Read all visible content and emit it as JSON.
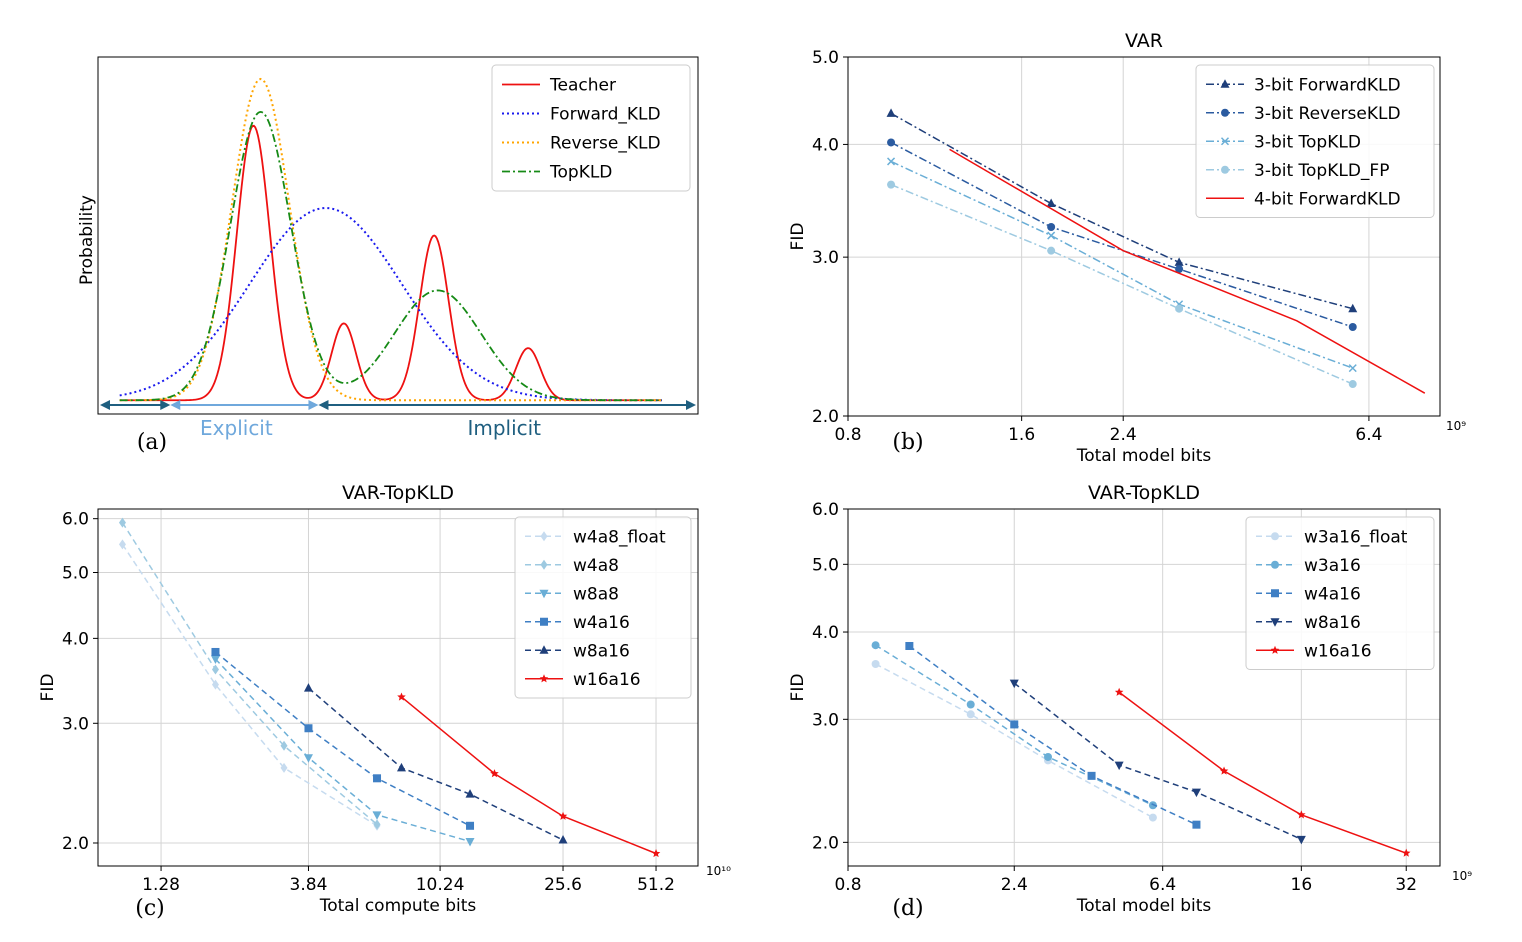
{
  "colors": {
    "teacher": "#ee1111",
    "forward": "#1a1aee",
    "reverse": "#ffa500",
    "topkld": "#168a16",
    "arrow_dark": "#1f5f80",
    "arrow_light": "#6fa8dc",
    "s1": "#c6dbef",
    "s2": "#9ecae1",
    "s3": "#6aaed6",
    "s4": "#3f7fc4",
    "s5": "#2b5ba0",
    "s6": "#1f3f7a",
    "red": "#ee1111"
  },
  "chart_data": [
    {
      "id": "a",
      "type": "line",
      "panel_label": "(a)",
      "title": "",
      "ylabel": "Probability",
      "xlabel": "",
      "xlim": [
        -0.3,
        8.0
      ],
      "ylim": [
        -0.05,
        1.25
      ],
      "legend_position": "top-right",
      "legend": [
        "Teacher",
        "Forward_KLD",
        "Reverse_KLD",
        "TopKLD"
      ],
      "regions": [
        {
          "label": "Explicit",
          "from": 0.7,
          "to": 2.75
        },
        {
          "label": "Implicit",
          "from": 2.75,
          "to": 7.9
        }
      ],
      "series": [
        {
          "name": "Teacher",
          "style": "solid",
          "color_key": "teacher",
          "x_range": [
            0,
            7.5
          ],
          "components": [
            {
              "amp": 1.0,
              "mu": 1.85,
              "sigma": 0.23
            },
            {
              "amp": 0.28,
              "mu": 3.1,
              "sigma": 0.17
            },
            {
              "amp": 0.6,
              "mu": 4.35,
              "sigma": 0.2
            },
            {
              "amp": 0.19,
              "mu": 5.65,
              "sigma": 0.17
            }
          ]
        },
        {
          "name": "Forward_KLD",
          "style": "dotted",
          "color_key": "forward",
          "x_range": [
            0,
            7.5
          ],
          "components": [
            {
              "amp": 0.7,
              "mu": 2.85,
              "sigma": 1.05
            }
          ]
        },
        {
          "name": "Reverse_KLD",
          "style": "dotted",
          "color_key": "reverse",
          "x_range": [
            0,
            7.5
          ],
          "components": [
            {
              "amp": 1.17,
              "mu": 1.95,
              "sigma": 0.4
            }
          ]
        },
        {
          "name": "TopKLD",
          "style": "dashdot",
          "color_key": "topkld",
          "x_range": [
            0,
            7.5
          ],
          "components": [
            {
              "amp": 1.05,
              "mu": 1.95,
              "sigma": 0.42
            },
            {
              "amp": 0.4,
              "mu": 4.4,
              "sigma": 0.6
            }
          ]
        }
      ]
    },
    {
      "id": "b",
      "type": "line",
      "panel_label": "(b)",
      "title": "VAR",
      "xlabel": "Total model bits",
      "ylabel": "FID",
      "xscale": "log",
      "yscale": "log",
      "x_unit": "10⁹",
      "xlim": [
        0.8,
        8.5
      ],
      "ylim": [
        2.0,
        5.0
      ],
      "xticks": [
        0.8,
        1.6,
        2.4,
        6.4
      ],
      "xtick_labels": [
        "0.8",
        "1.6",
        "2.4",
        "6.4"
      ],
      "yticks": [
        2.0,
        3.0,
        4.0,
        5.0
      ],
      "ytick_labels": [
        "2.0",
        "3.0",
        "4.0",
        "5.0"
      ],
      "grid": true,
      "legend_position": "top-right",
      "series": [
        {
          "name": "3-bit ForwardKLD",
          "color_key": "s6",
          "dash": "dashdot",
          "marker": "triangle",
          "x": [
            0.95,
            1.8,
            3.0,
            6.0
          ],
          "y": [
            4.33,
            3.44,
            2.96,
            2.63
          ]
        },
        {
          "name": "3-bit ReverseKLD",
          "color_key": "s5",
          "dash": "dashdot",
          "marker": "circle",
          "x": [
            0.95,
            1.8,
            3.0,
            6.0
          ],
          "y": [
            4.02,
            3.24,
            2.91,
            2.51
          ]
        },
        {
          "name": "3-bit TopKLD",
          "color_key": "s3",
          "dash": "dashdot",
          "marker": "x",
          "x": [
            0.95,
            1.8,
            3.0,
            6.0
          ],
          "y": [
            3.83,
            3.17,
            2.66,
            2.26
          ]
        },
        {
          "name": "3-bit TopKLD_FP",
          "color_key": "s2",
          "dash": "dashdot",
          "marker": "circle",
          "x": [
            0.95,
            1.8,
            3.0,
            6.0
          ],
          "y": [
            3.61,
            3.05,
            2.63,
            2.17
          ]
        },
        {
          "name": "4-bit ForwardKLD",
          "color_key": "red",
          "dash": "solid",
          "marker": "none",
          "x": [
            1.2,
            2.4,
            4.8,
            8.0
          ],
          "y": [
            3.95,
            3.05,
            2.55,
            2.12
          ]
        }
      ]
    },
    {
      "id": "c",
      "type": "line",
      "panel_label": "(c)",
      "title": "VAR-TopKLD",
      "xlabel": "Total compute bits",
      "ylabel": "FID",
      "xscale": "log",
      "yscale": "log",
      "x_unit": "10¹⁰",
      "xlim": [
        0.8,
        70
      ],
      "ylim": [
        1.85,
        6.2
      ],
      "xticks": [
        1.28,
        3.84,
        10.24,
        25.6,
        51.2
      ],
      "xtick_labels": [
        "1.28",
        "3.84",
        "10.24",
        "25.6",
        "51.2"
      ],
      "yticks": [
        2.0,
        3.0,
        4.0,
        5.0,
        6.0
      ],
      "ytick_labels": [
        "2.0",
        "3.0",
        "4.0",
        "5.0",
        "6.0"
      ],
      "grid": true,
      "legend_position": "top-right",
      "series": [
        {
          "name": "w4a8_float",
          "color_key": "s1",
          "dash": "dashed",
          "marker": "diamond",
          "x": [
            0.96,
            1.92,
            3.2,
            6.4
          ],
          "y": [
            5.5,
            3.42,
            2.58,
            2.12
          ]
        },
        {
          "name": "w4a8",
          "color_key": "s2",
          "dash": "dashed",
          "marker": "diamond",
          "x": [
            0.96,
            1.92,
            3.2,
            6.4
          ],
          "y": [
            5.92,
            3.6,
            2.78,
            2.13
          ]
        },
        {
          "name": "w8a8",
          "color_key": "s3",
          "dash": "dashed",
          "marker": "tri_down",
          "x": [
            1.92,
            3.84,
            6.4,
            12.8
          ],
          "y": [
            3.73,
            2.67,
            2.2,
            2.01
          ]
        },
        {
          "name": "w4a16",
          "color_key": "s4",
          "dash": "dashed",
          "marker": "square",
          "x": [
            1.92,
            3.84,
            6.4,
            12.8
          ],
          "y": [
            3.82,
            2.95,
            2.49,
            2.12
          ]
        },
        {
          "name": "w8a16",
          "color_key": "s6",
          "dash": "dashed",
          "marker": "triangle",
          "x": [
            3.84,
            7.68,
            12.8,
            25.6
          ],
          "y": [
            3.38,
            2.58,
            2.36,
            2.02
          ]
        },
        {
          "name": "w16a16",
          "color_key": "red",
          "dash": "solid",
          "marker": "star",
          "x": [
            7.68,
            15.36,
            25.6,
            51.2
          ],
          "y": [
            3.28,
            2.53,
            2.19,
            1.93
          ]
        }
      ]
    },
    {
      "id": "d",
      "type": "line",
      "panel_label": "(d)",
      "title": "VAR-TopKLD",
      "xlabel": "Total model bits",
      "ylabel": "FID",
      "xscale": "log",
      "yscale": "log",
      "x_unit": "10⁹",
      "xlim": [
        0.8,
        40
      ],
      "ylim": [
        1.85,
        6.0
      ],
      "xticks": [
        0.8,
        2.4,
        6.4,
        16,
        32
      ],
      "xtick_labels": [
        "0.8",
        "2.4",
        "6.4",
        "16",
        "32"
      ],
      "yticks": [
        2.0,
        3.0,
        4.0,
        5.0,
        6.0
      ],
      "ytick_labels": [
        "2.0",
        "3.0",
        "4.0",
        "5.0",
        "6.0"
      ],
      "grid": true,
      "legend_position": "top-right",
      "series": [
        {
          "name": "w3a16_float",
          "color_key": "s1",
          "dash": "dashed",
          "marker": "circle",
          "x": [
            0.96,
            1.8,
            3.0,
            6.0
          ],
          "y": [
            3.6,
            3.05,
            2.62,
            2.17
          ]
        },
        {
          "name": "w3a16",
          "color_key": "s3",
          "dash": "dashed",
          "marker": "circle",
          "x": [
            0.96,
            1.8,
            3.0,
            6.0
          ],
          "y": [
            3.83,
            3.15,
            2.65,
            2.26
          ]
        },
        {
          "name": "w4a16",
          "color_key": "s4",
          "dash": "dashed",
          "marker": "square",
          "x": [
            1.2,
            2.4,
            4.0,
            8.0
          ],
          "y": [
            3.82,
            2.95,
            2.49,
            2.12
          ]
        },
        {
          "name": "w8a16",
          "color_key": "s6",
          "dash": "dashed",
          "marker": "tri_down",
          "x": [
            2.4,
            4.8,
            8.0,
            16
          ],
          "y": [
            3.38,
            2.58,
            2.36,
            2.02
          ]
        },
        {
          "name": "w16a16",
          "color_key": "red",
          "dash": "solid",
          "marker": "star",
          "x": [
            4.8,
            9.6,
            16,
            32
          ],
          "y": [
            3.28,
            2.53,
            2.19,
            1.93
          ]
        }
      ]
    }
  ]
}
